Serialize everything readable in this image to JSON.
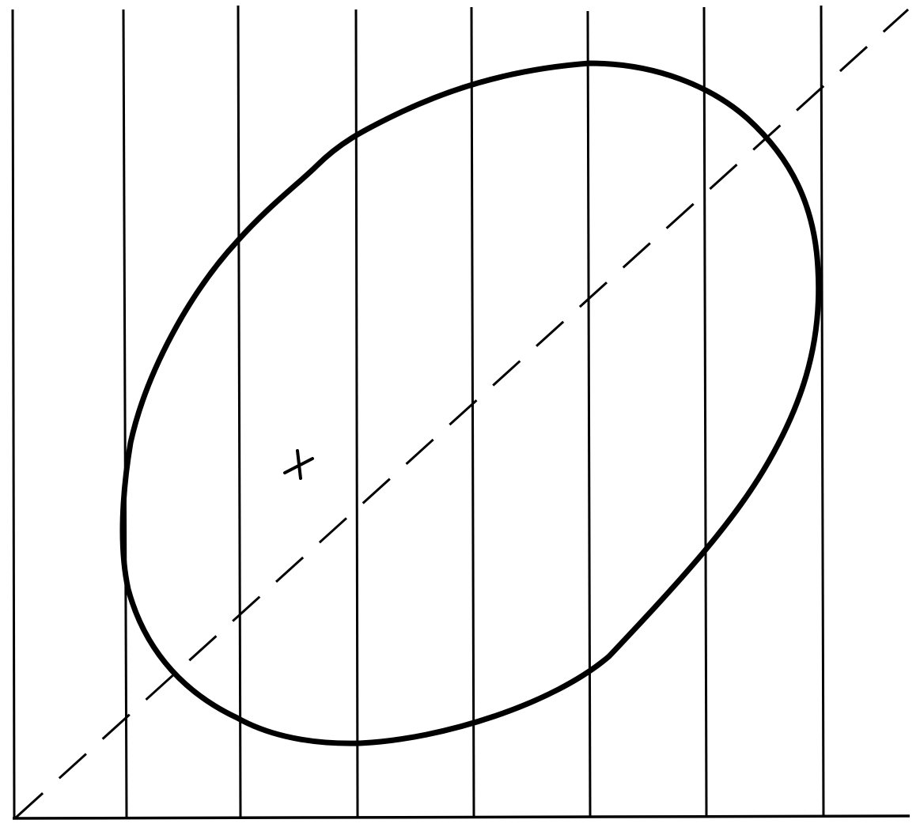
{
  "diagram": {
    "vertical_line_count": 8,
    "has_baseline": true,
    "has_dashed_diagonal": true,
    "has_closed_curve": true,
    "has_cross_marker": true,
    "colors": {
      "background": "#ffffff",
      "stroke": "#000000"
    }
  }
}
